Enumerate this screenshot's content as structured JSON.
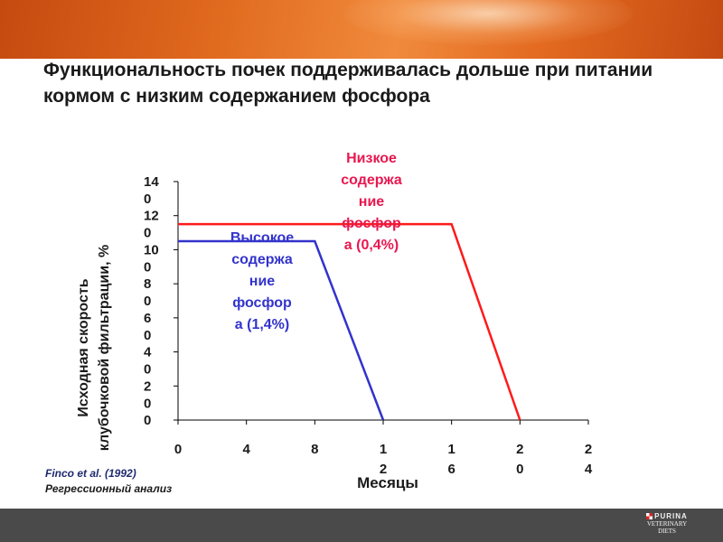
{
  "slide": {
    "title": "Функциональность почек поддерживалась дольше при питании кормом с низким содержанием фосфора",
    "source_line1": "Finco et al. (1992)",
    "source_line2": "Регрессионный анализ",
    "logo_brand": "PURINA",
    "logo_sub1": "VETERINARY",
    "logo_sub2": "DIETS",
    "colors": {
      "banner": "#e06a1e",
      "high_series": "#3333cc",
      "low_series": "#ff1a1a",
      "low_label": "#e8174f",
      "footer": "#4a4a4a"
    }
  },
  "chart_data": {
    "type": "line",
    "xlabel": "Месяцы",
    "ylabel": "Исходная скорость клубочковой фильтрации, %",
    "xlim": [
      0,
      24
    ],
    "ylim": [
      0,
      140
    ],
    "x_ticks": [
      {
        "value": 0,
        "lines": [
          "0"
        ]
      },
      {
        "value": 4,
        "lines": [
          "4"
        ]
      },
      {
        "value": 8,
        "lines": [
          "8"
        ]
      },
      {
        "value": 12,
        "lines": [
          "1",
          "2"
        ]
      },
      {
        "value": 16,
        "lines": [
          "1",
          "6"
        ]
      },
      {
        "value": 20,
        "lines": [
          "2",
          "0"
        ]
      },
      {
        "value": 24,
        "lines": [
          "2",
          "4"
        ]
      }
    ],
    "y_ticks": [
      {
        "value": 0,
        "lines": [
          "0"
        ]
      },
      {
        "value": 20,
        "lines": [
          "2",
          "0"
        ]
      },
      {
        "value": 40,
        "lines": [
          "4",
          "0"
        ]
      },
      {
        "value": 60,
        "lines": [
          "6",
          "0"
        ]
      },
      {
        "value": 80,
        "lines": [
          "8",
          "0"
        ]
      },
      {
        "value": 100,
        "lines": [
          "10",
          "0"
        ]
      },
      {
        "value": 120,
        "lines": [
          "12",
          "0"
        ]
      },
      {
        "value": 140,
        "lines": [
          "14",
          "0"
        ]
      }
    ],
    "grid": false,
    "series": [
      {
        "key": "high",
        "label_lines": [
          "Высокое",
          "содержа",
          "ние",
          "фосфор",
          "а (1,4%)"
        ],
        "color": "#3333cc",
        "x": [
          0,
          8,
          12
        ],
        "y": [
          105,
          105,
          0
        ]
      },
      {
        "key": "low",
        "label_lines": [
          "Низкое",
          "содержа",
          "ние",
          "фосфор",
          "а (0,4%)"
        ],
        "color": "#ff1a1a",
        "x": [
          0,
          16,
          20
        ],
        "y": [
          115,
          115,
          0
        ]
      }
    ]
  }
}
